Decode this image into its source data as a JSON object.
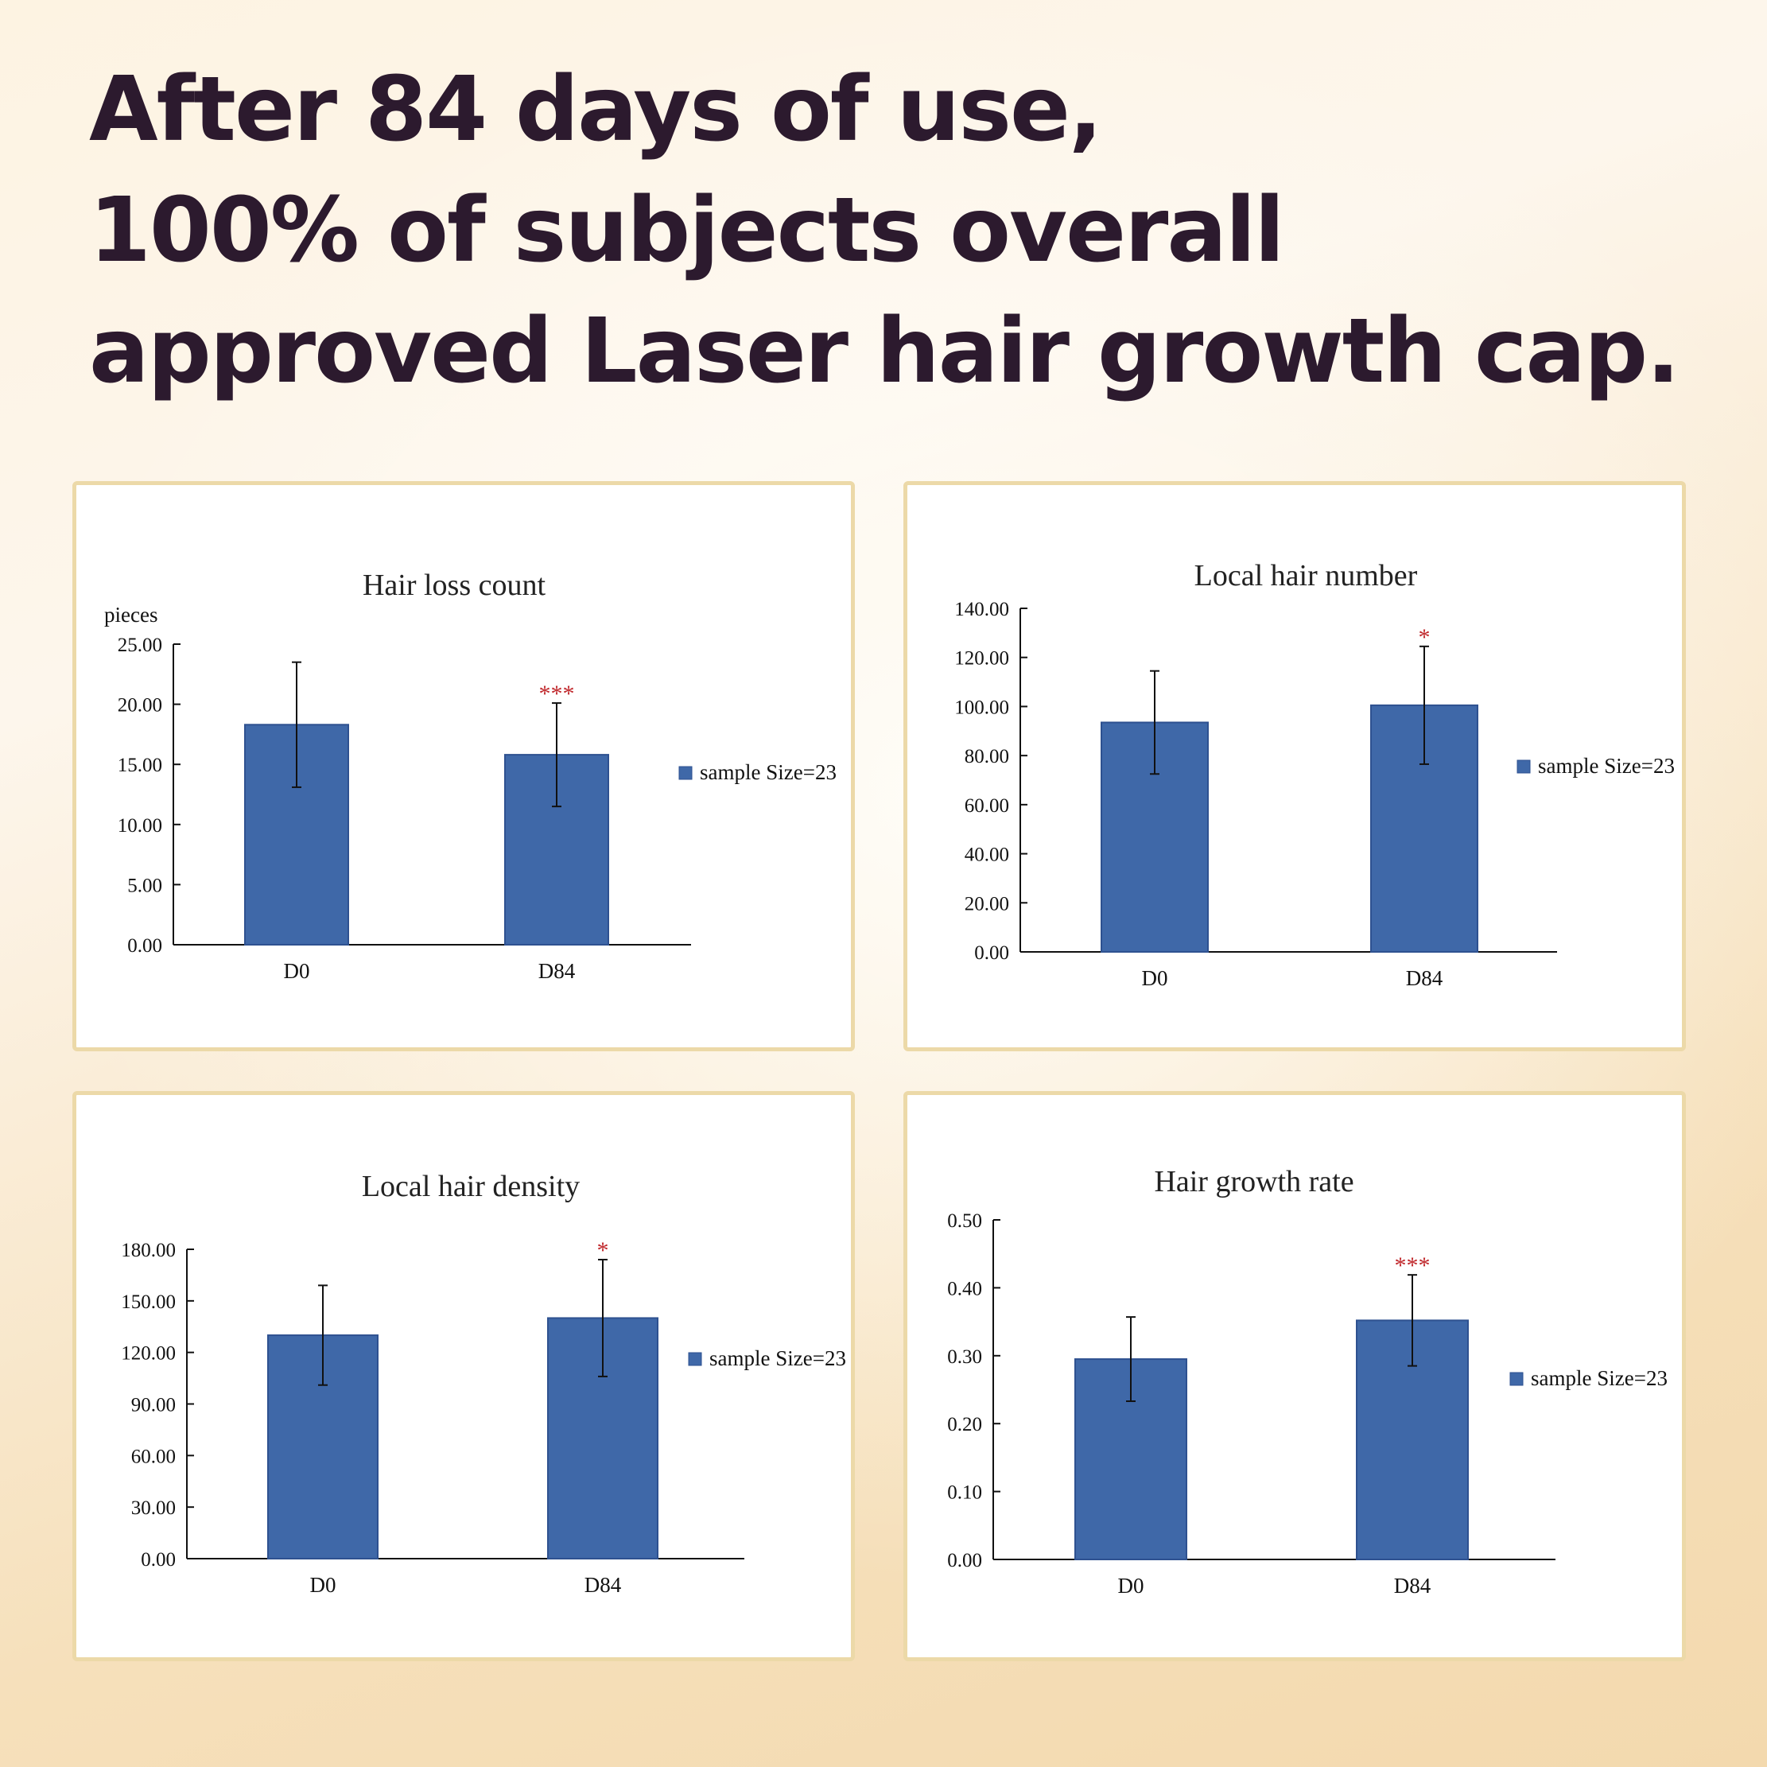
{
  "headline": {
    "line1": "After 84 days of use,",
    "line2": "100% of subjects overall",
    "line3": "approved Laser hair growth cap."
  },
  "colors": {
    "bar": "#3f68a8",
    "bar_edge": "#2e5190",
    "significance": "#c0282c",
    "panel_border": "#ecd9a8"
  },
  "chart_data": [
    {
      "type": "bar",
      "title": "Hair loss count",
      "ylabel": "pieces",
      "categories": [
        "D0",
        "D84"
      ],
      "values": [
        18.3,
        15.8
      ],
      "error_bars": [
        5.2,
        4.3
      ],
      "significance": [
        "",
        "***"
      ],
      "ylim": [
        0,
        25
      ],
      "yticks": [
        0,
        5,
        10,
        15,
        20,
        25
      ],
      "ytick_labels": [
        "0.00",
        "5.00",
        "10.00",
        "15.00",
        "20.00",
        "25.00"
      ],
      "legend": {
        "label": "sample Size=23",
        "position": "right"
      }
    },
    {
      "type": "bar",
      "title": "Local hair number",
      "ylabel": "",
      "categories": [
        "D0",
        "D84"
      ],
      "values": [
        93.5,
        100.5
      ],
      "error_bars": [
        21,
        24
      ],
      "significance": [
        "",
        "*"
      ],
      "ylim": [
        0,
        140
      ],
      "yticks": [
        0,
        20,
        40,
        60,
        80,
        100,
        120,
        140
      ],
      "ytick_labels": [
        "0.00",
        "20.00",
        "40.00",
        "60.00",
        "80.00",
        "100.00",
        "120.00",
        "140.00"
      ],
      "legend": {
        "label": "sample Size=23",
        "position": "right"
      }
    },
    {
      "type": "bar",
      "title": "Local hair density",
      "ylabel": "",
      "categories": [
        "D0",
        "D84"
      ],
      "values": [
        130,
        140
      ],
      "error_bars": [
        29,
        34
      ],
      "significance": [
        "",
        "*"
      ],
      "ylim": [
        0,
        180
      ],
      "yticks": [
        0,
        30,
        60,
        90,
        120,
        150,
        180
      ],
      "ytick_labels": [
        "0.00",
        "30.00",
        "60.00",
        "90.00",
        "120.00",
        "150.00",
        "180.00"
      ],
      "legend": {
        "label": "sample Size=23",
        "position": "right"
      }
    },
    {
      "type": "bar",
      "title": "Hair growth rate",
      "ylabel": "",
      "categories": [
        "D0",
        "D84"
      ],
      "values": [
        0.295,
        0.352
      ],
      "error_bars": [
        0.062,
        0.067
      ],
      "significance": [
        "",
        "***"
      ],
      "ylim": [
        0,
        0.5
      ],
      "yticks": [
        0,
        0.1,
        0.2,
        0.3,
        0.4,
        0.5
      ],
      "ytick_labels": [
        "0.00",
        "0.10",
        "0.20",
        "0.30",
        "0.40",
        "0.50"
      ],
      "legend": {
        "label": "sample Size=23",
        "position": "right"
      }
    }
  ]
}
